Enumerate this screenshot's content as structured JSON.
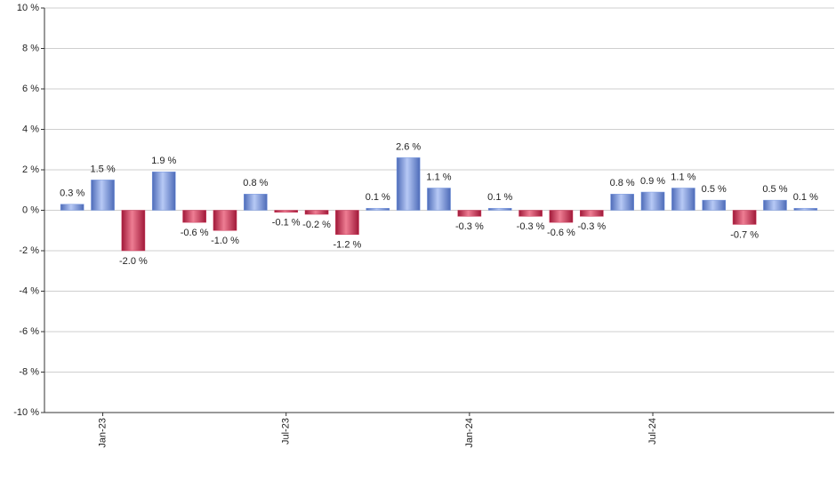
{
  "chart_data": {
    "type": "bar",
    "categories": [
      null,
      "Jan-23",
      null,
      null,
      null,
      null,
      null,
      "Jul-23",
      null,
      null,
      null,
      null,
      null,
      "Jan-24",
      null,
      null,
      null,
      null,
      null,
      "Jul-24",
      null,
      null,
      null,
      null,
      null
    ],
    "values": [
      0.3,
      1.5,
      -2.0,
      1.9,
      -0.6,
      -1.0,
      0.8,
      -0.1,
      -0.2,
      -1.2,
      0.1,
      2.6,
      1.1,
      -0.3,
      0.1,
      -0.3,
      -0.6,
      -0.3,
      0.8,
      0.9,
      1.1,
      0.5,
      -0.7,
      0.5,
      0.1
    ],
    "value_labels": [
      "0.3 %",
      "1.5 %",
      "-2.0 %",
      "1.9 %",
      "-0.6 %",
      "-1.0 %",
      "0.8 %",
      "-0.1 %",
      "-0.2 %",
      "-1.2 %",
      "0.1 %",
      "2.6 %",
      "1.1 %",
      "-0.3 %",
      "0.1 %",
      "-0.3 %",
      "-0.6 %",
      "-0.3 %",
      "0.8 %",
      "0.9 %",
      "1.1 %",
      "0.5 %",
      "-0.7 %",
      "0.5 %",
      "0.1 %"
    ],
    "positive_color": "#7b9ae0",
    "negative_color": "#cc3a5a",
    "ylim": [
      -10,
      10
    ],
    "yticks": [
      {
        "value": -10,
        "label": "-10 %"
      },
      {
        "value": -8,
        "label": "-8 %"
      },
      {
        "value": -6,
        "label": "-6 %"
      },
      {
        "value": -4,
        "label": "-4 %"
      },
      {
        "value": -2,
        "label": "-2 %"
      },
      {
        "value": 0,
        "label": "0 %"
      },
      {
        "value": 2,
        "label": "2 %"
      },
      {
        "value": 4,
        "label": "4 %"
      },
      {
        "value": 6,
        "label": "6 %"
      },
      {
        "value": 8,
        "label": "8 %"
      },
      {
        "value": 10,
        "label": "10 %"
      }
    ],
    "grid": true
  }
}
